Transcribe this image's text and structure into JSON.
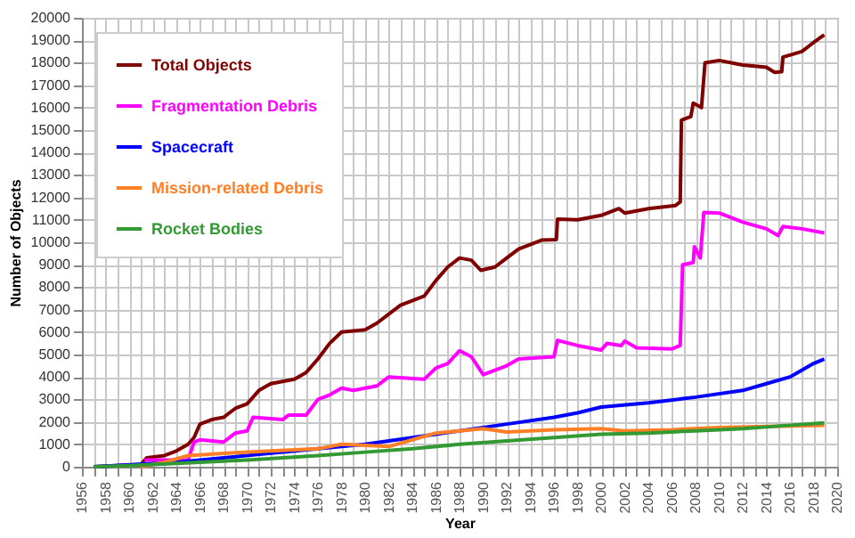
{
  "chart_data": {
    "type": "line",
    "xlabel": "Year",
    "ylabel": "Number of Objects",
    "xlim": [
      1956,
      2020
    ],
    "ylim": [
      0,
      20000
    ],
    "xticks": [
      1956,
      {
        "value": 1957,
        "label": null
      },
      1958,
      {
        "value": 1959,
        "label": null
      },
      1960,
      {
        "value": 1961,
        "label": null
      },
      1962,
      {
        "value": 1963,
        "label": null
      },
      1964,
      {
        "value": 1965,
        "label": null
      },
      1966,
      {
        "value": 1967,
        "label": null
      },
      1968,
      {
        "value": 1969,
        "label": null
      },
      1970,
      {
        "value": 1971,
        "label": null
      },
      1972,
      {
        "value": 1973,
        "label": null
      },
      1974,
      {
        "value": 1975,
        "label": null
      },
      1976,
      {
        "value": 1977,
        "label": null
      },
      1978,
      {
        "value": 1979,
        "label": null
      },
      1980,
      {
        "value": 1981,
        "label": null
      },
      1982,
      {
        "value": 1983,
        "label": null
      },
      1984,
      {
        "value": 1985,
        "label": null
      },
      1986,
      {
        "value": 1987,
        "label": null
      },
      1988,
      {
        "value": 1989,
        "label": null
      },
      1990,
      {
        "value": 1991,
        "label": null
      },
      1992,
      {
        "value": 1993,
        "label": null
      },
      1994,
      {
        "value": 1995,
        "label": null
      },
      1996,
      {
        "value": 1997,
        "label": null
      },
      1998,
      {
        "value": 1999,
        "label": null
      },
      2000,
      {
        "value": 2001,
        "label": null
      },
      2002,
      {
        "value": 2003,
        "label": null
      },
      2004,
      {
        "value": 2005,
        "label": null
      },
      2006,
      {
        "value": 2007,
        "label": null
      },
      2008,
      {
        "value": 2009,
        "label": null
      },
      2010,
      {
        "value": 2011,
        "label": null
      },
      2012,
      {
        "value": 2013,
        "label": null
      },
      2014,
      {
        "value": 2015,
        "label": null
      },
      2016,
      {
        "value": 2017,
        "label": null
      },
      2018,
      {
        "value": 2019,
        "label": null
      },
      2020
    ],
    "yticks": [
      0,
      1000,
      2000,
      3000,
      4000,
      5000,
      6000,
      7000,
      8000,
      9000,
      10000,
      11000,
      12000,
      13000,
      14000,
      15000,
      16000,
      17000,
      18000,
      19000,
      20000
    ],
    "grid": true,
    "legend": "top left",
    "marker": "none",
    "line_style": "solid",
    "series": [
      {
        "name": "Total Objects",
        "color": "#800000",
        "x": [
          1957,
          1961,
          1961.5,
          1963,
          1964,
          1965,
          1965.5,
          1966,
          1967,
          1968,
          1969,
          1970,
          1971,
          1972,
          1974,
          1975,
          1976,
          1977,
          1978,
          1980,
          1981,
          1982,
          1983,
          1985,
          1986,
          1987,
          1988,
          1989,
          1989.8,
          1991,
          1992,
          1993,
          1995,
          1996.2,
          1996.3,
          1998,
          2000,
          2001.5,
          2002,
          2004,
          2006.3,
          2006.7,
          2006.8,
          2007.6,
          2007.8,
          2008.5,
          2008.8,
          2010,
          2012,
          2014,
          2014.7,
          2015.3,
          2015.4,
          2017,
          2018,
          2018.9
        ],
        "values": [
          0,
          100,
          400,
          500,
          700,
          1000,
          1300,
          1900,
          2100,
          2200,
          2600,
          2800,
          3400,
          3700,
          3900,
          4200,
          4800,
          5500,
          6000,
          6100,
          6400,
          6800,
          7200,
          7600,
          8300,
          8900,
          9300,
          9200,
          8750,
          8900,
          9300,
          9700,
          10100,
          10120,
          11030,
          11000,
          11200,
          11500,
          11300,
          11500,
          11640,
          11800,
          15440,
          15600,
          16200,
          16000,
          18000,
          18100,
          17900,
          17800,
          17570,
          17600,
          18250,
          18500,
          18900,
          19240
        ]
      },
      {
        "name": "Fragmentation Debris",
        "color": "#ff00ff",
        "x": [
          1961.3,
          1965,
          1965.5,
          1966,
          1968,
          1969,
          1970,
          1970.5,
          1973,
          1973.5,
          1975,
          1976,
          1977,
          1978,
          1979,
          1980,
          1981,
          1982,
          1985,
          1986,
          1987,
          1988,
          1989,
          1990,
          1991,
          1992,
          1993,
          1996,
          1996.3,
          1998,
          2000,
          2000.5,
          2001.7,
          2002,
          2003,
          2006,
          2006.7,
          2006.9,
          2007.8,
          2007.9,
          2008.4,
          2008.7,
          2010,
          2012,
          2014,
          2015,
          2015.4,
          2017,
          2018.9
        ],
        "values": [
          300,
          300,
          1100,
          1200,
          1100,
          1500,
          1600,
          2200,
          2100,
          2300,
          2300,
          3000,
          3200,
          3500,
          3400,
          3500,
          3600,
          4000,
          3900,
          4400,
          4600,
          5170,
          4900,
          4100,
          4300,
          4500,
          4800,
          4900,
          5630,
          5400,
          5200,
          5500,
          5400,
          5600,
          5300,
          5250,
          5400,
          9000,
          9100,
          9800,
          9300,
          11330,
          11300,
          10900,
          10600,
          10300,
          10700,
          10600,
          10420
        ]
      },
      {
        "name": "Spacecraft",
        "color": "#0000ff",
        "x": [
          1957,
          1964,
          1968,
          1972,
          1976,
          1980,
          1984,
          1986,
          1988,
          1992,
          1996,
          1998,
          2000,
          2004,
          2008,
          2012,
          2014,
          2016,
          2018,
          2018.9
        ],
        "values": [
          0,
          200,
          400,
          600,
          800,
          1000,
          1300,
          1450,
          1600,
          1900,
          2200,
          2400,
          2660,
          2850,
          3100,
          3400,
          3700,
          4000,
          4600,
          4800
        ]
      },
      {
        "name": "Mission-related Debris",
        "color": "#ff7f27",
        "x": [
          1961,
          1963,
          1965,
          1968,
          1972,
          1976,
          1978,
          1982,
          1984,
          1986,
          1988,
          1990,
          1992,
          1996,
          2000,
          2002,
          2006,
          2010,
          2014,
          2018.9
        ],
        "values": [
          0,
          200,
          500,
          600,
          700,
          800,
          1000,
          900,
          1200,
          1500,
          1600,
          1700,
          1550,
          1650,
          1700,
          1600,
          1650,
          1750,
          1800,
          1850
        ]
      },
      {
        "name": "Rocket Bodies",
        "color": "#339933",
        "x": [
          1957,
          1960,
          1964,
          1970,
          1976,
          1980,
          1984,
          1988,
          1992,
          1996,
          2000,
          2004,
          2008,
          2012,
          2016,
          2018.9
        ],
        "values": [
          0,
          50,
          150,
          300,
          500,
          650,
          800,
          1000,
          1150,
          1300,
          1450,
          1500,
          1600,
          1700,
          1850,
          1950
        ]
      }
    ]
  }
}
